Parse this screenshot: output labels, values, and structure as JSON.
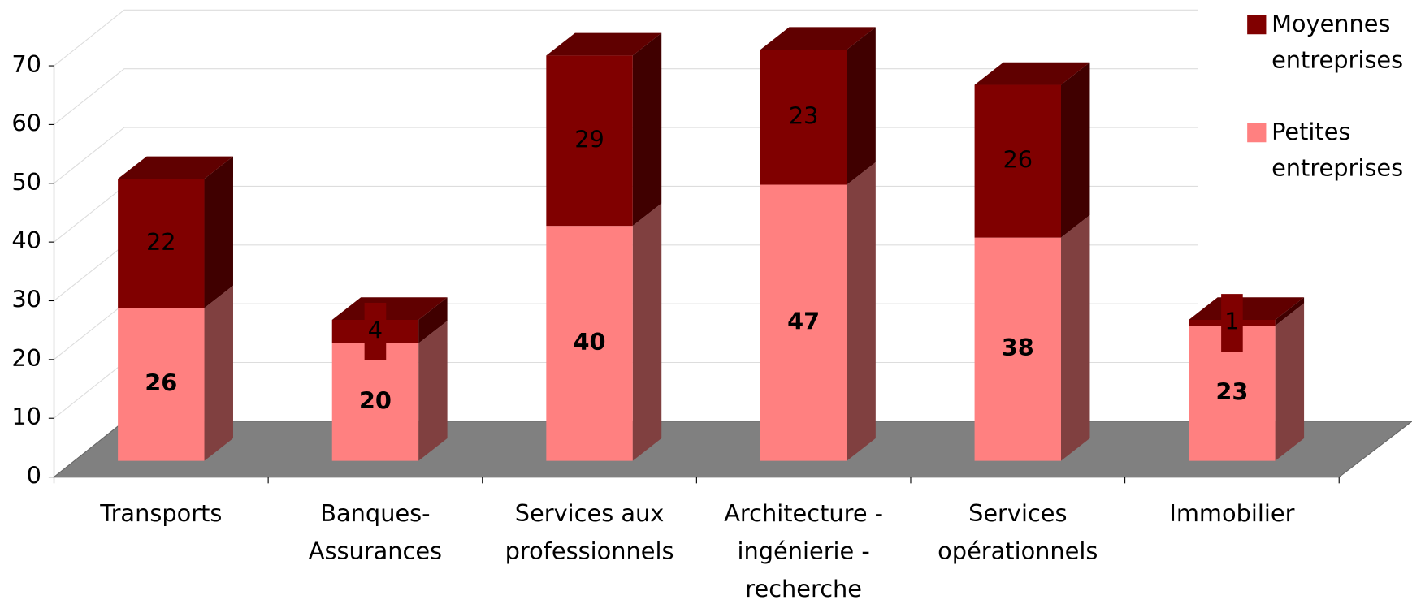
{
  "chart_data": {
    "type": "bar3d_stacked",
    "categories": [
      "Transports",
      "Banques-\nAssurances",
      "Services aux\nprofessionnels",
      "Architecture -\ningénierie -\nrecherche",
      "Services\nopérationnels",
      "Immobilier"
    ],
    "series": [
      {
        "name": "Petites\nentreprises",
        "color": "#ff8080",
        "values": [
          26,
          20,
          40,
          47,
          38,
          23
        ]
      },
      {
        "name": "Moyennes\nentreprises",
        "color": "#800000",
        "values": [
          22,
          4,
          29,
          23,
          26,
          1
        ]
      }
    ],
    "ylim": [
      0,
      70
    ],
    "yticks": [
      0,
      10,
      20,
      30,
      40,
      50,
      60,
      70
    ],
    "grid": true,
    "legend": "right"
  }
}
